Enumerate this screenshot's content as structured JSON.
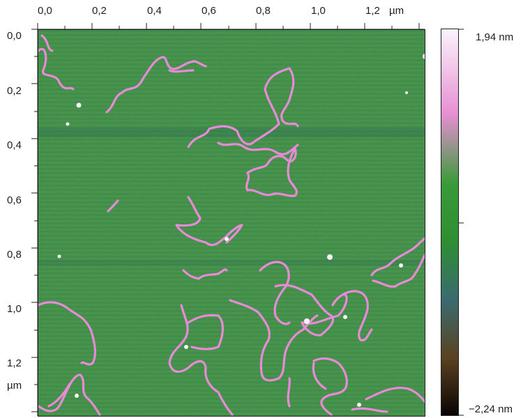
{
  "image": {
    "x_unit": "µm",
    "y_unit": "µm",
    "x_ticks": [
      "0,0",
      "0,2",
      "0,4",
      "0,6",
      "0,8",
      "1,0",
      "1,2"
    ],
    "y_ticks": [
      "0,0",
      "0,2",
      "0,4",
      "0,6",
      "0,8",
      "1,0",
      "1,2"
    ]
  },
  "colorbar": {
    "max_label": "1,94 nm",
    "min_label": "−2,24 nm",
    "colors": [
      "#fbf3fb",
      "#e68fd3",
      "#3a9a38",
      "#2f8e32",
      "#3a6b70",
      "#5b4222",
      "#0a0503"
    ]
  },
  "scan": {
    "background": "#3b8a3e",
    "strand_color": "#e88ad8"
  }
}
